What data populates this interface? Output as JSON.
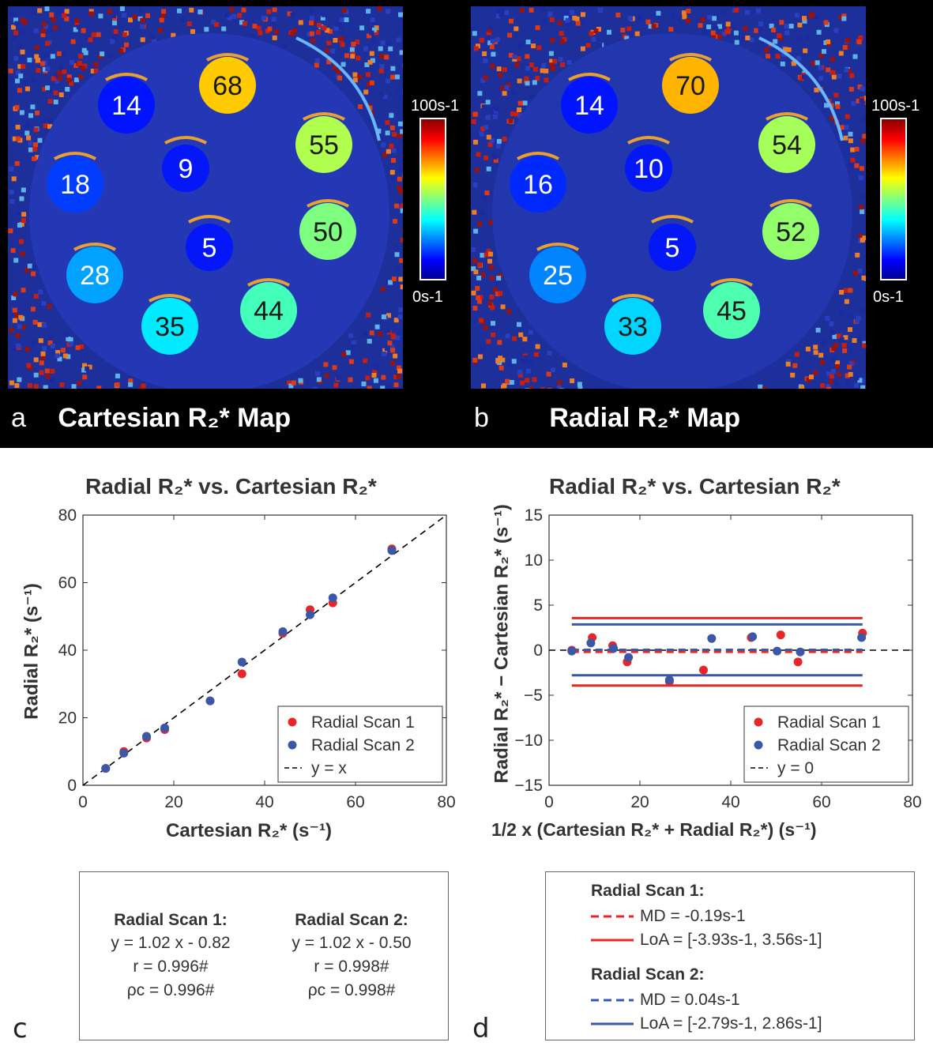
{
  "maps": [
    {
      "letter": "a",
      "title": "Cartesian R₂* Map",
      "colorbar_max": "100s-1",
      "colorbar_min": "0s-1",
      "vials": [
        "14",
        "68",
        "55",
        "18",
        "9",
        "50",
        "5",
        "28",
        "35",
        "44"
      ]
    },
    {
      "letter": "b",
      "title": "Radial R₂* Map",
      "colorbar_max": "100s-1",
      "colorbar_min": "0s-1",
      "vials": [
        "14",
        "70",
        "54",
        "16",
        "10",
        "52",
        "5",
        "25",
        "33",
        "45"
      ]
    }
  ],
  "colors": {
    "scan1": "#e8262a",
    "scan2": "#3a57a8",
    "identity": "#000000"
  },
  "chart_data": [
    {
      "type": "scatter",
      "letter": "c",
      "title": "Radial R₂* vs. Cartesian R₂*",
      "xlabel": "Cartesian R₂* (s⁻¹)",
      "ylabel": "Radial R₂* (s⁻¹)",
      "xlim": [
        0,
        80
      ],
      "ylim": [
        0,
        80
      ],
      "xticks": [
        "0",
        "20",
        "40",
        "60",
        "80"
      ],
      "yticks": [
        "0",
        "20",
        "40",
        "60",
        "80"
      ],
      "legend_position": "bottom-right",
      "series": [
        {
          "name": "Radial Scan 1",
          "x": [
            5,
            9,
            14,
            18,
            28,
            35,
            44,
            50,
            55,
            68
          ],
          "y": [
            5,
            10,
            14,
            16.5,
            25,
            33,
            45,
            52,
            54,
            70
          ]
        },
        {
          "name": "Radial Scan 2",
          "x": [
            5,
            9,
            14,
            18,
            28,
            35,
            44,
            50,
            55,
            68
          ],
          "y": [
            5,
            9.5,
            14.5,
            17,
            25,
            36.5,
            45.5,
            50.5,
            55.5,
            69.5
          ]
        }
      ],
      "reference_line": {
        "name": "y = x"
      }
    },
    {
      "type": "scatter",
      "letter": "d",
      "title": "Radial R₂* vs. Cartesian R₂*",
      "xlabel": "1/2 x (Cartesian R₂* + Radial R₂*) (s⁻¹)",
      "ylabel": "Radial R₂* − Cartesian R₂* (s⁻¹)",
      "xlim": [
        0,
        80
      ],
      "ylim": [
        -15,
        15
      ],
      "xticks": [
        "0",
        "20",
        "40",
        "60",
        "80"
      ],
      "yticks": [
        "−15",
        "−10",
        "−5",
        "0",
        "5",
        "10",
        "15"
      ],
      "legend_position": "bottom-right",
      "series": [
        {
          "name": "Radial Scan 1",
          "x": [
            5,
            9.5,
            14,
            17.2,
            26.5,
            34,
            44.5,
            51,
            54.8,
            69
          ],
          "y": [
            0,
            1.4,
            0.5,
            -1.3,
            -3.5,
            -2.2,
            1.4,
            1.7,
            -1.3,
            1.9
          ],
          "mean_difference": -0.19,
          "limits_of_agreement": [
            -3.93,
            3.56
          ]
        },
        {
          "name": "Radial Scan 2",
          "x": [
            5,
            9.2,
            14.2,
            17.5,
            26.5,
            35.8,
            44.8,
            50.2,
            55.3,
            68.8
          ],
          "y": [
            -0.1,
            0.8,
            0.2,
            -0.8,
            -3.3,
            1.3,
            1.5,
            -0.1,
            -0.2,
            1.4
          ],
          "mean_difference": 0.04,
          "limits_of_agreement": [
            -2.79,
            2.86
          ]
        }
      ],
      "reference_line": {
        "name": "y = 0"
      }
    }
  ],
  "stats_c": {
    "scan1": {
      "head": "Radial Scan 1:",
      "eq": "y = 1.02 x - 0.82",
      "r": "r = 0.996#",
      "rho": "ρc = 0.996#"
    },
    "scan2": {
      "head": "Radial Scan 2:",
      "eq": "y = 1.02 x - 0.50",
      "r": "r = 0.998#",
      "rho": "ρc = 0.998#"
    }
  },
  "stats_d": {
    "scan1": {
      "head": "Radial Scan 1:",
      "md": "MD = -0.19s-1",
      "loa": "LoA = [-3.93s-1, 3.56s-1]"
    },
    "scan2": {
      "head": "Radial Scan 2:",
      "md": "MD = 0.04s-1",
      "loa": "LoA = [-2.79s-1, 2.86s-1]"
    }
  }
}
